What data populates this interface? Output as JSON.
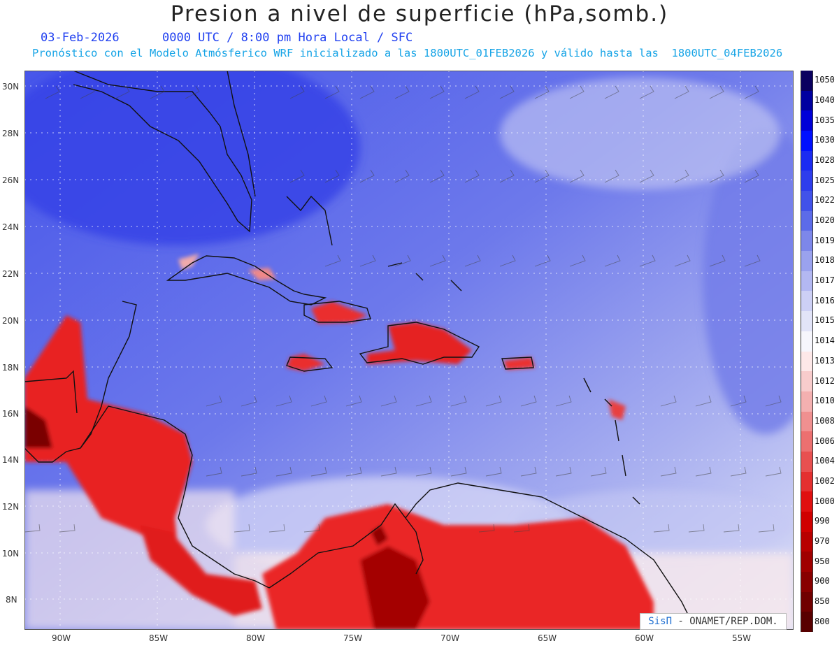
{
  "header": {
    "title": "Presion a nivel de superficie (hPa,somb.)",
    "subtitle_line1": "03-Feb-2026      0000 UTC / 8:00 pm Hora Local / SFC",
    "subtitle_line2": "Pronóstico con el Modelo Atmósferico WRF inicializado a las 1800UTC_01FEB2026 y válido hasta las  1800UTC_04FEB2026"
  },
  "axes": {
    "lat_labels": [
      "30N",
      "28N",
      "26N",
      "24N",
      "22N",
      "20N",
      "18N",
      "16N",
      "14N",
      "12N",
      "10N",
      "8N"
    ],
    "lon_labels": [
      "90W",
      "85W",
      "80W",
      "75W",
      "70W",
      "65W",
      "60W",
      "55W"
    ]
  },
  "colorbar": {
    "levels": [
      "1050",
      "1040",
      "1035",
      "1030",
      "1028",
      "1025",
      "1022",
      "1020",
      "1019",
      "1018",
      "1017",
      "1016",
      "1015",
      "1014",
      "1013",
      "1012",
      "1010",
      "1008",
      "1006",
      "1004",
      "1002",
      "1000",
      "990",
      "970",
      "950",
      "900",
      "850",
      "800"
    ],
    "colors": [
      "#0a0060",
      "#0000a0",
      "#0000d8",
      "#0010ff",
      "#1b2bf2",
      "#2e3ded",
      "#4152ea",
      "#5c6be9",
      "#7d87ea",
      "#9aa2ee",
      "#b3b8f2",
      "#cdd0f5",
      "#e2e4f8",
      "#f6f6fc",
      "#fde8e8",
      "#f8cccc",
      "#f4b0b0",
      "#f09090",
      "#ec7070",
      "#e85050",
      "#e43030",
      "#e01010",
      "#d00000",
      "#b80000",
      "#a00000",
      "#880000",
      "#700000",
      "#580000"
    ]
  },
  "watermark": {
    "brand": "SisΠ",
    "org": " - ONAMET/REP.DOM."
  }
}
